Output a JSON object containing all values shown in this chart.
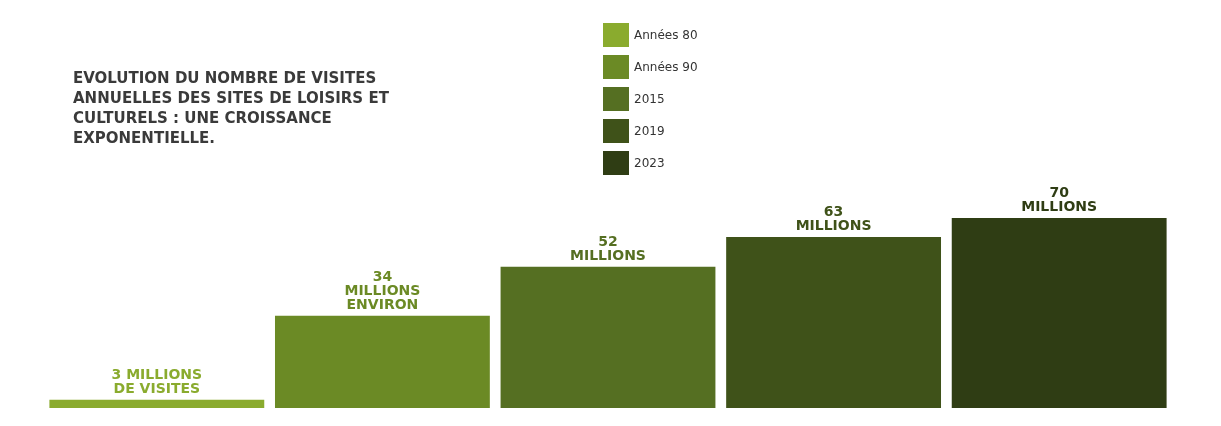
{
  "chart_data": {
    "type": "bar",
    "title": "EVOLUTION DU NOMBRE DE VISITES ANNUELLES DES SITES DE LOISIRS ET CULTURELS : UNE CROISSANCE EXPONENTIELLE.",
    "categories": [
      null
    ],
    "series": [
      {
        "name": "Années 80",
        "color": "#8aab2e",
        "values": [
          3
        ],
        "value_labels": [
          "3 MILLIONS\nDE VISITES"
        ]
      },
      {
        "name": "Années 90",
        "color": "#6b8a25",
        "values": [
          34
        ],
        "value_labels": [
          "34\nMILLIONS\nENVIRON"
        ]
      },
      {
        "name": "2015",
        "color": "#556f22",
        "values": [
          52
        ],
        "value_labels": [
          "52\nMILLIONS"
        ]
      },
      {
        "name": "2019",
        "color": "#3f5219",
        "values": [
          63
        ],
        "value_labels": [
          "63\nMILLIONS"
        ]
      },
      {
        "name": "2023",
        "color": "#2f3d14",
        "values": [
          70
        ],
        "value_labels": [
          "70\nMILLIONS"
        ]
      }
    ],
    "legend": "top",
    "tick_labels": false
  }
}
